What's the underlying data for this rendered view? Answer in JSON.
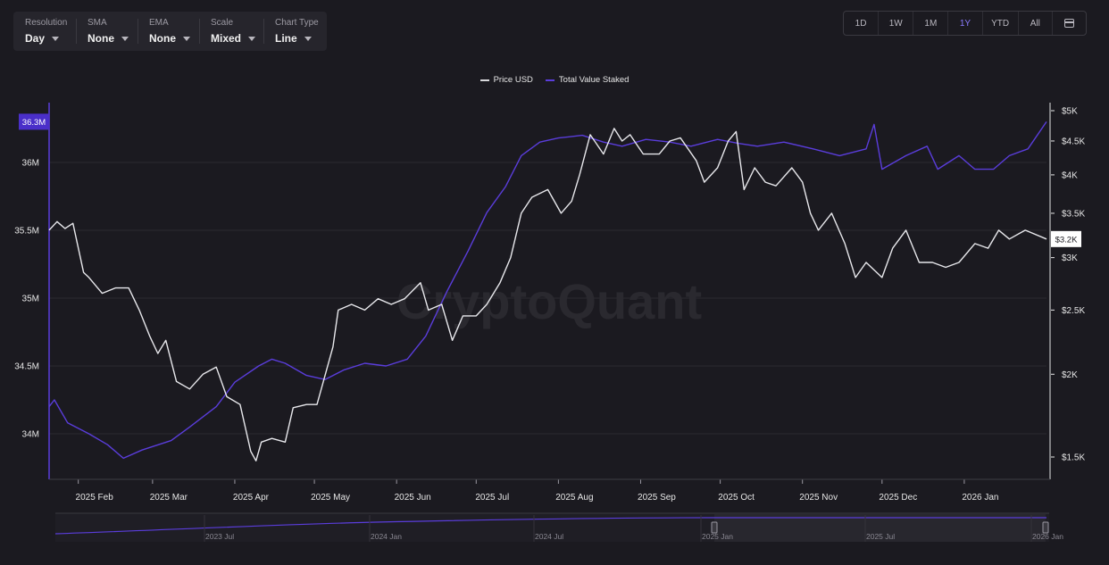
{
  "toolbar": {
    "resolution": {
      "label": "Resolution",
      "value": "Day"
    },
    "sma": {
      "label": "SMA",
      "value": "None"
    },
    "ema": {
      "label": "EMA",
      "value": "None"
    },
    "scale": {
      "label": "Scale",
      "value": "Mixed"
    },
    "chart_type": {
      "label": "Chart Type",
      "value": "Line"
    }
  },
  "ranges": [
    "1D",
    "1W",
    "1M",
    "1Y",
    "YTD",
    "All"
  ],
  "active_range": "1Y",
  "watermark": "CryptoQuant",
  "colors": {
    "price": "#e8e8ec",
    "staked": "#5a3ddb",
    "background": "#1b1a20"
  },
  "chart_data": {
    "type": "line",
    "legend": [
      "Price USD",
      "Total Value Staked"
    ],
    "legend_position": "top-center",
    "x_ticks": [
      "2025 Feb",
      "2025 Mar",
      "2025 Apr",
      "2025 May",
      "2025 Jun",
      "2025 Jul",
      "2025 Aug",
      "2025 Sep",
      "2025 Oct",
      "2025 Nov",
      "2025 Dec",
      "2026 Jan"
    ],
    "left_axis": {
      "ticks": [
        "34M",
        "34.5M",
        "35M",
        "35.5M",
        "36M"
      ],
      "current_label": "36.3M"
    },
    "right_axis": {
      "ticks": [
        "$1.5K",
        "$2K",
        "$2.5K",
        "$3K",
        "$3.5K",
        "$4K",
        "$4.5K",
        "$5K"
      ],
      "current_label": "$3.2K",
      "scale": "log"
    },
    "series": [
      {
        "name": "Total Value Staked",
        "axis": "left",
        "points": [
          [
            "2025-01-21",
            34.2
          ],
          [
            "2025-01-23",
            34.25
          ],
          [
            "2025-01-28",
            34.08
          ],
          [
            "2025-02-05",
            34.0
          ],
          [
            "2025-02-12",
            33.92
          ],
          [
            "2025-02-18",
            33.82
          ],
          [
            "2025-02-25",
            33.88
          ],
          [
            "2025-03-08",
            33.95
          ],
          [
            "2025-03-15",
            34.05
          ],
          [
            "2025-03-25",
            34.2
          ],
          [
            "2025-04-01",
            34.38
          ],
          [
            "2025-04-10",
            34.5
          ],
          [
            "2025-04-15",
            34.55
          ],
          [
            "2025-04-20",
            34.52
          ],
          [
            "2025-04-28",
            34.43
          ],
          [
            "2025-05-05",
            34.4
          ],
          [
            "2025-05-12",
            34.47
          ],
          [
            "2025-05-20",
            34.52
          ],
          [
            "2025-05-28",
            34.5
          ],
          [
            "2025-06-05",
            34.55
          ],
          [
            "2025-06-12",
            34.72
          ],
          [
            "2025-06-20",
            35.05
          ],
          [
            "2025-06-28",
            35.35
          ],
          [
            "2025-07-05",
            35.63
          ],
          [
            "2025-07-12",
            35.82
          ],
          [
            "2025-07-18",
            36.05
          ],
          [
            "2025-07-25",
            36.15
          ],
          [
            "2025-08-01",
            36.18
          ],
          [
            "2025-08-10",
            36.2
          ],
          [
            "2025-08-18",
            36.15
          ],
          [
            "2025-08-25",
            36.12
          ],
          [
            "2025-09-03",
            36.17
          ],
          [
            "2025-09-12",
            36.15
          ],
          [
            "2025-09-20",
            36.12
          ],
          [
            "2025-09-30",
            36.17
          ],
          [
            "2025-10-08",
            36.14
          ],
          [
            "2025-10-15",
            36.12
          ],
          [
            "2025-10-25",
            36.15
          ],
          [
            "2025-11-05",
            36.1
          ],
          [
            "2025-11-15",
            36.05
          ],
          [
            "2025-11-25",
            36.1
          ],
          [
            "2025-11-28",
            36.28
          ],
          [
            "2025-12-01",
            35.95
          ],
          [
            "2025-12-10",
            36.05
          ],
          [
            "2025-12-18",
            36.12
          ],
          [
            "2025-12-22",
            35.95
          ],
          [
            "2025-12-30",
            36.05
          ],
          [
            "2026-01-05",
            35.95
          ],
          [
            "2026-01-12",
            35.95
          ],
          [
            "2026-01-18",
            36.05
          ],
          [
            "2026-01-25",
            36.1
          ],
          [
            "2026-02-01",
            36.3
          ]
        ]
      },
      {
        "name": "Price USD",
        "axis": "right",
        "points": [
          [
            "2025-01-21",
            3300
          ],
          [
            "2025-01-24",
            3400
          ],
          [
            "2025-01-27",
            3320
          ],
          [
            "2025-01-30",
            3380
          ],
          [
            "2025-02-03",
            2850
          ],
          [
            "2025-02-05",
            2800
          ],
          [
            "2025-02-10",
            2650
          ],
          [
            "2025-02-15",
            2700
          ],
          [
            "2025-02-20",
            2700
          ],
          [
            "2025-02-24",
            2500
          ],
          [
            "2025-02-28",
            2280
          ],
          [
            "2025-03-03",
            2150
          ],
          [
            "2025-03-06",
            2250
          ],
          [
            "2025-03-10",
            1950
          ],
          [
            "2025-03-15",
            1900
          ],
          [
            "2025-03-20",
            2000
          ],
          [
            "2025-03-25",
            2050
          ],
          [
            "2025-03-29",
            1850
          ],
          [
            "2025-04-03",
            1800
          ],
          [
            "2025-04-07",
            1530
          ],
          [
            "2025-04-09",
            1480
          ],
          [
            "2025-04-11",
            1580
          ],
          [
            "2025-04-15",
            1600
          ],
          [
            "2025-04-20",
            1580
          ],
          [
            "2025-04-23",
            1780
          ],
          [
            "2025-04-28",
            1800
          ],
          [
            "2025-05-02",
            1800
          ],
          [
            "2025-05-08",
            2200
          ],
          [
            "2025-05-10",
            2500
          ],
          [
            "2025-05-15",
            2550
          ],
          [
            "2025-05-20",
            2500
          ],
          [
            "2025-05-25",
            2600
          ],
          [
            "2025-05-30",
            2550
          ],
          [
            "2025-06-04",
            2600
          ],
          [
            "2025-06-10",
            2750
          ],
          [
            "2025-06-13",
            2500
          ],
          [
            "2025-06-18",
            2550
          ],
          [
            "2025-06-22",
            2250
          ],
          [
            "2025-06-26",
            2450
          ],
          [
            "2025-07-01",
            2450
          ],
          [
            "2025-07-05",
            2550
          ],
          [
            "2025-07-10",
            2750
          ],
          [
            "2025-07-14",
            3000
          ],
          [
            "2025-07-18",
            3500
          ],
          [
            "2025-07-22",
            3700
          ],
          [
            "2025-07-28",
            3800
          ],
          [
            "2025-08-02",
            3500
          ],
          [
            "2025-08-06",
            3650
          ],
          [
            "2025-08-09",
            4000
          ],
          [
            "2025-08-13",
            4600
          ],
          [
            "2025-08-18",
            4300
          ],
          [
            "2025-08-22",
            4700
          ],
          [
            "2025-08-25",
            4500
          ],
          [
            "2025-08-28",
            4600
          ],
          [
            "2025-09-02",
            4300
          ],
          [
            "2025-09-08",
            4300
          ],
          [
            "2025-09-12",
            4500
          ],
          [
            "2025-09-16",
            4550
          ],
          [
            "2025-09-22",
            4200
          ],
          [
            "2025-09-25",
            3900
          ],
          [
            "2025-09-30",
            4100
          ],
          [
            "2025-10-04",
            4500
          ],
          [
            "2025-10-07",
            4650
          ],
          [
            "2025-10-10",
            3800
          ],
          [
            "2025-10-14",
            4100
          ],
          [
            "2025-10-18",
            3900
          ],
          [
            "2025-10-22",
            3850
          ],
          [
            "2025-10-28",
            4100
          ],
          [
            "2025-11-01",
            3900
          ],
          [
            "2025-11-04",
            3500
          ],
          [
            "2025-11-07",
            3300
          ],
          [
            "2025-11-12",
            3500
          ],
          [
            "2025-11-17",
            3150
          ],
          [
            "2025-11-21",
            2800
          ],
          [
            "2025-11-25",
            2950
          ],
          [
            "2025-12-01",
            2800
          ],
          [
            "2025-12-05",
            3100
          ],
          [
            "2025-12-10",
            3300
          ],
          [
            "2025-12-15",
            2950
          ],
          [
            "2025-12-20",
            2950
          ],
          [
            "2025-12-25",
            2900
          ],
          [
            "2025-12-30",
            2950
          ],
          [
            "2026-01-05",
            3150
          ],
          [
            "2026-01-10",
            3100
          ],
          [
            "2026-01-14",
            3300
          ],
          [
            "2026-01-18",
            3200
          ],
          [
            "2026-01-24",
            3300
          ],
          [
            "2026-02-01",
            3200
          ]
        ]
      }
    ],
    "navigator": {
      "x_ticks": [
        "2023 Jul",
        "2024 Jan",
        "2024 Jul",
        "2025 Jan",
        "2025 Jul",
        "2026 Jan"
      ]
    }
  }
}
